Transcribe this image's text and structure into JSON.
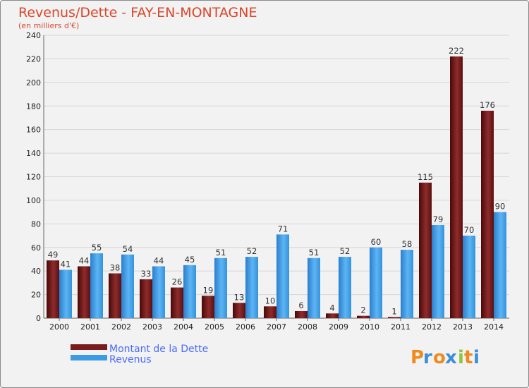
{
  "chart_data": {
    "type": "bar",
    "title": "Revenus/Dette - FAY-EN-MONTAGNE",
    "subtitle": "(en milliers d'€)",
    "categories": [
      "2000",
      "2001",
      "2002",
      "2003",
      "2004",
      "2005",
      "2006",
      "2007",
      "2008",
      "2009",
      "2010",
      "2011",
      "2012",
      "2013",
      "2014"
    ],
    "series": [
      {
        "name": "Montant de la Dette",
        "color": "#7a1c1c",
        "values": [
          49,
          44,
          38,
          33,
          26,
          19,
          13,
          10,
          6,
          4,
          2,
          1,
          115,
          222,
          176
        ]
      },
      {
        "name": "Revenus",
        "color": "#3d9be4",
        "values": [
          41,
          55,
          54,
          44,
          45,
          51,
          52,
          71,
          51,
          52,
          60,
          58,
          79,
          70,
          90
        ]
      }
    ],
    "ylim": [
      0,
      240
    ],
    "yticks": [
      0,
      20,
      40,
      60,
      80,
      100,
      120,
      140,
      160,
      180,
      200,
      220,
      240
    ],
    "grid": true,
    "legend": "bottom-left",
    "xlabel": "",
    "ylabel": ""
  },
  "logo": {
    "letters": [
      "P",
      "r",
      "o",
      "x",
      "i",
      "t",
      "i"
    ],
    "colors": [
      "#f08a1c",
      "#3a8fd9",
      "#f08a1c",
      "#3a8fd9",
      "#8cc63f",
      "#f08a1c",
      "#3a8fd9"
    ]
  }
}
